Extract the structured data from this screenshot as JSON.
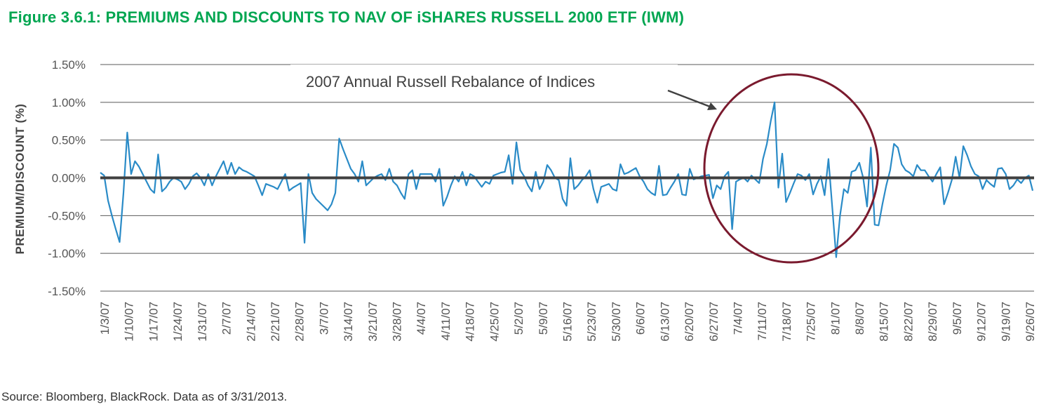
{
  "title": "Figure 3.6.1: PREMIUMS AND DISCOUNTS TO NAV OF iSHARES RUSSELL 2000 ETF (IWM)",
  "source": "Source: Bloomberg, BlackRock. Data as of 3/31/2013.",
  "colors": {
    "title": "#00a651",
    "series": "#2a8bc7",
    "zero_line": "#404040",
    "grid": "#595959",
    "circle": "#7a1a2e",
    "arrow": "#404040"
  },
  "annotation": {
    "text": "2007 Annual Russell Rebalance of Indices"
  },
  "chart_data": {
    "type": "line",
    "title": "Figure 3.6.1: PREMIUMS AND DISCOUNTS TO NAV OF iSHARES RUSSELL 2000 ETF (IWM)",
    "xlabel": "",
    "ylabel": "PREMIUM/DISCOUNT (%)",
    "ylim": [
      -1.5,
      1.5
    ],
    "y_ticks": [
      1.5,
      1.0,
      0.5,
      0.0,
      -0.5,
      -1.0,
      -1.5
    ],
    "y_tick_labels": [
      "1.50%",
      "1.00%",
      "0.50%",
      "0.00%",
      "-0.50%",
      "-1.00%",
      "-1.50%"
    ],
    "x_tick_labels": [
      "1/3/07",
      "1/10/07",
      "1/17/07",
      "1/24/07",
      "1/31/07",
      "2/7/07",
      "2/14/07",
      "2/21/07",
      "2/28/07",
      "3/7/07",
      "3/14/07",
      "3/21/07",
      "3/28/07",
      "4/4/07",
      "4/11/07",
      "4/18/07",
      "4/25/07",
      "5/2/07",
      "5/9/07",
      "5/16/07",
      "5/23/07",
      "5/30/07",
      "6/6/07",
      "6/13/07",
      "6/20/07",
      "6/27/07",
      "7/4/07",
      "7/11/07",
      "7/18/07",
      "7/25/07",
      "8/1/07",
      "8/8/07",
      "8/15/07",
      "8/22/07",
      "8/29/07",
      "9/5/07",
      "9/12/07",
      "9/19/07",
      "9/26/07"
    ],
    "grid": true,
    "legend": "none",
    "series": [
      {
        "values": [
          0.07,
          0.03,
          -0.3,
          -0.5,
          -0.68,
          -0.85,
          -0.2,
          0.6,
          0.05,
          0.22,
          0.15,
          0.05,
          -0.05,
          -0.15,
          -0.2,
          0.31,
          -0.18,
          -0.13,
          -0.05,
          0.0,
          -0.02,
          -0.05,
          -0.15,
          -0.08,
          0.02,
          0.06,
          0.0,
          -0.1,
          0.05,
          -0.1,
          0.02,
          0.12,
          0.22,
          0.05,
          0.2,
          0.05,
          0.14,
          0.1,
          0.08,
          0.05,
          0.02,
          -0.1,
          -0.23,
          -0.08,
          -0.1,
          -0.12,
          -0.15,
          -0.05,
          0.05,
          -0.17,
          -0.13,
          -0.1,
          -0.07,
          -0.86,
          0.05,
          -0.2,
          -0.28,
          -0.33,
          -0.38,
          -0.43,
          -0.35,
          -0.2,
          0.52,
          0.38,
          0.25,
          0.12,
          0.05,
          -0.05,
          0.22,
          -0.1,
          -0.05,
          0.0,
          0.03,
          0.05,
          -0.03,
          0.12,
          -0.05,
          -0.1,
          -0.2,
          -0.28,
          0.05,
          0.1,
          -0.15,
          0.05,
          0.05,
          0.05,
          0.05,
          -0.05,
          0.12,
          -0.37,
          -0.25,
          -0.1,
          0.02,
          -0.05,
          0.08,
          -0.1,
          0.05,
          0.02,
          -0.05,
          -0.12,
          -0.05,
          -0.08,
          0.03,
          0.05,
          0.07,
          0.08,
          0.3,
          -0.08,
          0.47,
          0.1,
          0.02,
          -0.1,
          -0.18,
          0.08,
          -0.15,
          -0.05,
          0.17,
          0.1,
          0.0,
          -0.03,
          -0.28,
          -0.37,
          0.26,
          -0.15,
          -0.1,
          -0.03,
          0.02,
          0.1,
          -0.15,
          -0.33,
          -0.12,
          -0.1,
          -0.08,
          -0.15,
          -0.17,
          0.18,
          0.05,
          0.07,
          0.1,
          0.13,
          0.02,
          -0.05,
          -0.15,
          -0.2,
          -0.23,
          0.16,
          -0.23,
          -0.22,
          -0.13,
          -0.05,
          0.05,
          -0.22,
          -0.23,
          0.12,
          -0.02,
          0.0,
          0.02,
          0.03,
          0.04,
          -0.27,
          -0.1,
          -0.15,
          0.02,
          0.08,
          -0.68,
          -0.05,
          -0.02,
          0.0,
          -0.05,
          0.03,
          -0.02,
          -0.07,
          0.25,
          0.45,
          0.75,
          1.0,
          -0.13,
          0.32,
          -0.32,
          -0.2,
          -0.07,
          0.05,
          0.03,
          -0.03,
          0.05,
          -0.22,
          -0.08,
          0.02,
          -0.23,
          0.25,
          -0.4,
          -1.05,
          -0.5,
          -0.15,
          -0.2,
          0.08,
          0.1,
          0.2,
          0.0,
          -0.38,
          0.4,
          -0.62,
          -0.63,
          -0.35,
          -0.1,
          0.1,
          0.45,
          0.4,
          0.18,
          0.1,
          0.07,
          0.02,
          0.17,
          0.1,
          0.1,
          0.02,
          -0.05,
          0.05,
          0.14,
          -0.35,
          -0.2,
          -0.03,
          0.28,
          0.0,
          0.42,
          0.3,
          0.15,
          0.05,
          0.02,
          -0.15,
          -0.03,
          -0.08,
          -0.12,
          0.12,
          0.13,
          0.05,
          -0.15,
          -0.1,
          -0.02,
          -0.07,
          0.0,
          0.03,
          -0.17
        ]
      }
    ]
  }
}
